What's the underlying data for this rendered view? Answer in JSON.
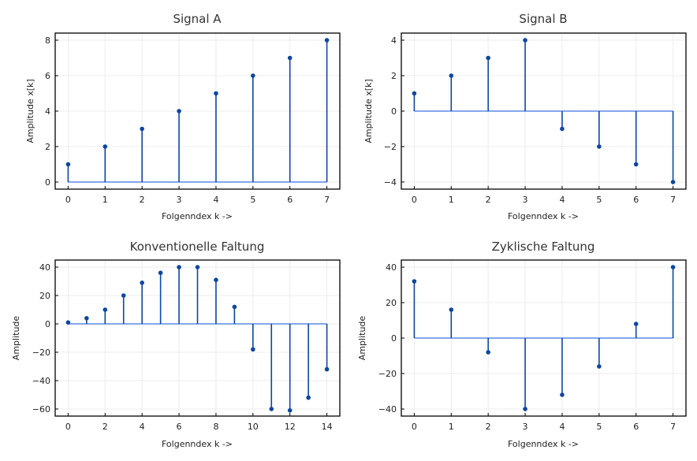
{
  "colors": {
    "stem": "#0d47a1",
    "marker": "#0d47a1",
    "baseline": "#5c8ae6",
    "grid": "#ececec",
    "frame": "#000000"
  },
  "chart_data": [
    {
      "type": "stem",
      "title": "Signal A",
      "xlabel": "Folgenndex k ->",
      "ylabel": "Amplitude x[k]",
      "x": [
        0,
        1,
        2,
        3,
        4,
        5,
        6,
        7
      ],
      "values": [
        1,
        2,
        3,
        4,
        5,
        6,
        7,
        8
      ],
      "xlim": [
        -0.35,
        7.35
      ],
      "ylim": [
        -0.4,
        8.4
      ],
      "xticks": [
        0,
        1,
        2,
        3,
        4,
        5,
        6,
        7
      ],
      "yticks": [
        0,
        2,
        4,
        6,
        8
      ],
      "ytick_labels": [
        "0",
        "2",
        "4",
        "6",
        "8"
      ],
      "grid": true
    },
    {
      "type": "stem",
      "title": "Signal B",
      "xlabel": "Folgenndex k ->",
      "ylabel": "Amplitude x[k]",
      "x": [
        0,
        1,
        2,
        3,
        4,
        5,
        6,
        7
      ],
      "values": [
        1,
        2,
        3,
        4,
        -1,
        -2,
        -3,
        -4
      ],
      "xlim": [
        -0.35,
        7.35
      ],
      "ylim": [
        -4.4,
        4.4
      ],
      "xticks": [
        0,
        1,
        2,
        3,
        4,
        5,
        6,
        7
      ],
      "yticks": [
        -4,
        -2,
        0,
        2,
        4
      ],
      "ytick_labels": [
        "−4",
        "−2",
        "0",
        "2",
        "4"
      ],
      "grid": true
    },
    {
      "type": "stem",
      "title": "Konventionelle Faltung",
      "xlabel": "Folgenndex k ->",
      "ylabel": "Amplitude",
      "x": [
        0,
        1,
        2,
        3,
        4,
        5,
        6,
        7,
        8,
        9,
        10,
        11,
        12,
        13,
        14
      ],
      "values": [
        1,
        4,
        10,
        20,
        29,
        36,
        40,
        40,
        31,
        12,
        -18,
        -60,
        -61,
        -52,
        -32
      ],
      "xlim": [
        -0.7,
        14.7
      ],
      "ylim": [
        -65,
        45
      ],
      "xticks": [
        0,
        2,
        4,
        6,
        8,
        10,
        12,
        14
      ],
      "yticks": [
        -60,
        -40,
        -20,
        0,
        20,
        40
      ],
      "ytick_labels": [
        "−60",
        "−40",
        "−20",
        "0",
        "20",
        "40"
      ],
      "grid": true
    },
    {
      "type": "stem",
      "title": "Zyklische Faltung",
      "xlabel": "Folgenndex k ->",
      "ylabel": "Amplitude",
      "x": [
        0,
        1,
        2,
        3,
        4,
        5,
        6,
        7
      ],
      "values": [
        32,
        16,
        -8,
        -40,
        -32,
        -16,
        8,
        40
      ],
      "xlim": [
        -0.35,
        7.35
      ],
      "ylim": [
        -44,
        44
      ],
      "xticks": [
        0,
        1,
        2,
        3,
        4,
        5,
        6,
        7
      ],
      "yticks": [
        -40,
        -20,
        0,
        20,
        40
      ],
      "ytick_labels": [
        "−40",
        "−20",
        "0",
        "20",
        "40"
      ],
      "grid": true
    }
  ]
}
